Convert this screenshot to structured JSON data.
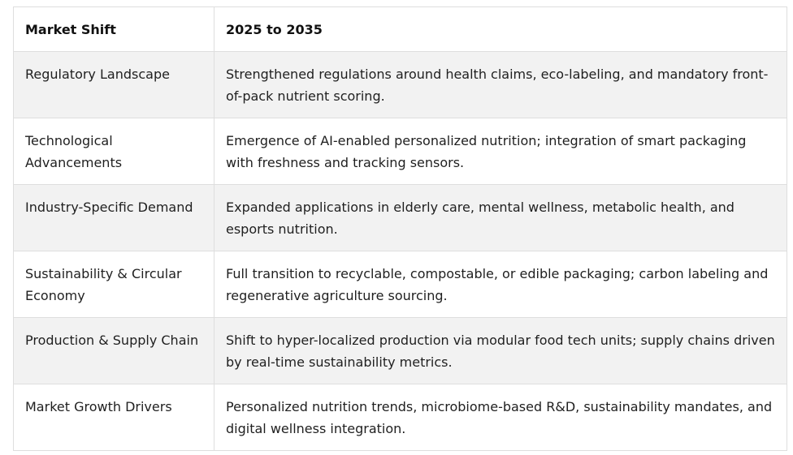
{
  "table": {
    "headers": [
      "Market Shift",
      "2025 to 2035"
    ],
    "rows": [
      [
        "Regulatory Landscape",
        "Strengthened regulations around health claims, eco-labeling, and mandatory front-of-pack nutrient scoring."
      ],
      [
        "Technological Advancements",
        "Emergence of AI-enabled personalized nutrition; integration of smart packaging with freshness and tracking sensors."
      ],
      [
        "Industry-Specific Demand",
        "Expanded applications in elderly care, mental wellness, metabolic health, and esports nutrition."
      ],
      [
        "Sustainability & Circular Economy",
        "Full transition to recyclable, compostable, or edible packaging; carbon labeling and regenerative agriculture sourcing."
      ],
      [
        "Production & Supply Chain",
        "Shift to hyper-localized production via modular food tech units; supply chains driven by real-time sustainability metrics."
      ],
      [
        "Market Growth Drivers",
        "Personalized nutrition trends, microbiome-based R&D, sustainability mandates, and digital wellness integration."
      ]
    ]
  }
}
